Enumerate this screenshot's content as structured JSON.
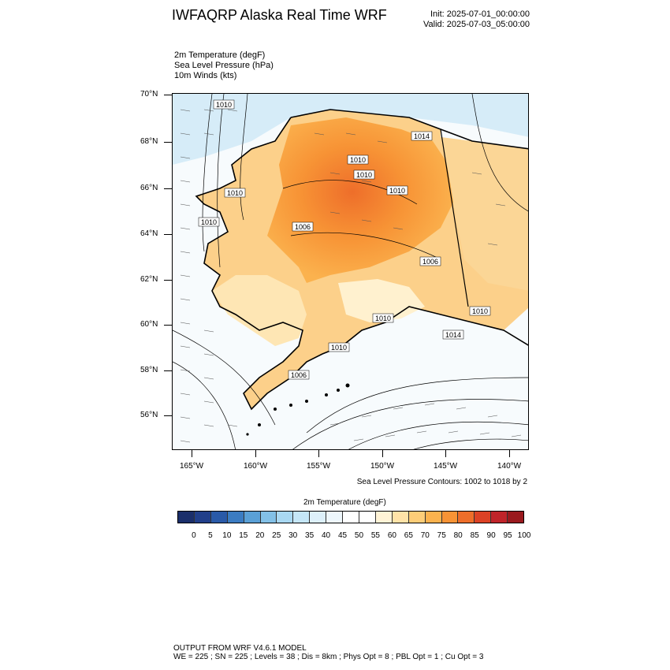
{
  "header": {
    "title": "IWFAQRP Alaska Real Time WRF",
    "init": "Init: 2025-07-01_00:00:00",
    "valid": "Valid: 2025-07-03_05:00:00"
  },
  "fields": {
    "temp": "2m Temperature   (degF)",
    "slp": "Sea Level Pressure   (hPa)",
    "winds": "10m Winds   (kts)"
  },
  "axes": {
    "lat_labels": [
      "70°N",
      "68°N",
      "66°N",
      "64°N",
      "62°N",
      "60°N",
      "58°N",
      "56°N"
    ],
    "lon_labels": [
      "165°W",
      "160°W",
      "155°W",
      "150°W",
      "145°W",
      "140°W"
    ]
  },
  "contour_labels": [
    "1010",
    "1014",
    "1010",
    "1010",
    "1010",
    "1010",
    "1010",
    "1006",
    "1006",
    "1010",
    "1010",
    "1014",
    "1010",
    "1006"
  ],
  "contours_note": "Sea Level Pressure Contours: 1002 to 1018 by 2",
  "colorbar": {
    "title": "2m Temperature  (degF)",
    "ticks": [
      "0",
      "5",
      "10",
      "15",
      "20",
      "25",
      "30",
      "35",
      "40",
      "45",
      "50",
      "55",
      "60",
      "65",
      "70",
      "75",
      "80",
      "85",
      "90",
      "95",
      "100"
    ],
    "colors": [
      "#1b2f6b",
      "#213f8a",
      "#2a5aa8",
      "#3b7cc2",
      "#5aa0d6",
      "#83c0e6",
      "#a9d8f2",
      "#c5e6f7",
      "#ddf0fa",
      "#eef7fc",
      "#ffffff",
      "#ffffff",
      "#fff3d6",
      "#ffe3a8",
      "#fdcd78",
      "#fbb24e",
      "#f79335",
      "#ee6e2a",
      "#dc4225",
      "#c0242a",
      "#9a1a1e"
    ]
  },
  "footer": {
    "line1": "OUTPUT FROM WRF V4.6.1 MODEL",
    "line2": "WE = 225 ; SN = 225 ; Levels = 38 ; Dis = 8km ; Phys Opt = 8 ; PBL Opt = 1 ; Cu Opt = 3"
  }
}
